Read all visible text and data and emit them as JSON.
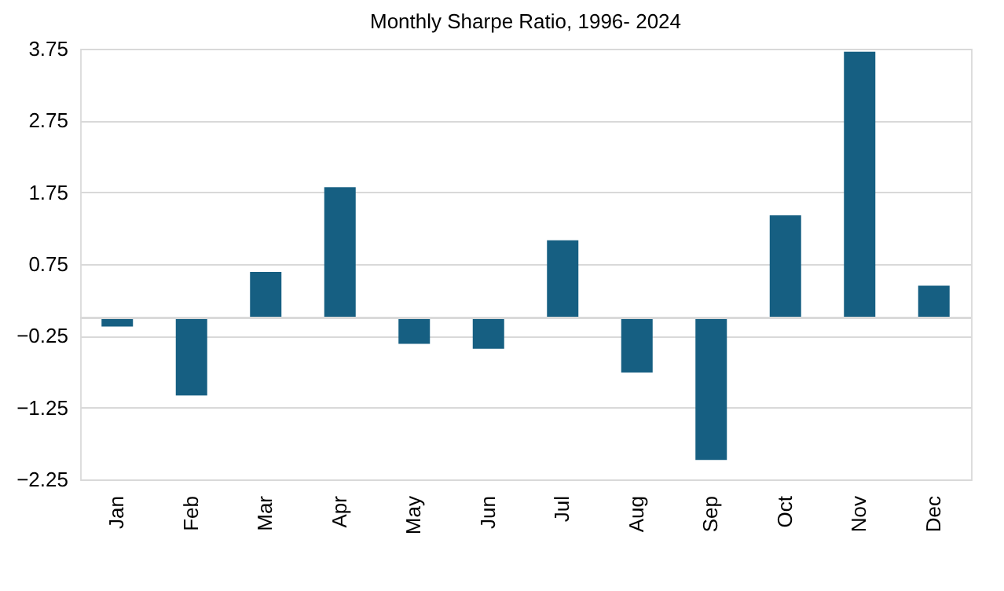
{
  "chart_data": {
    "type": "bar",
    "title": "Monthly Sharpe Ratio, 1996- 2024",
    "categories": [
      "Jan",
      "Feb",
      "Mar",
      "Apr",
      "May",
      "Jun",
      "Jul",
      "Aug",
      "Sep",
      "Oct",
      "Nov",
      "Dec"
    ],
    "values": [
      -0.12,
      -1.08,
      0.64,
      1.82,
      -0.36,
      -0.43,
      1.08,
      -0.76,
      -1.98,
      1.43,
      3.71,
      0.45
    ],
    "color": "#165f82",
    "ylim": [
      -2.25,
      3.75
    ],
    "yticks": [
      -2.25,
      -1.25,
      -0.25,
      0.75,
      1.75,
      2.75,
      3.75
    ],
    "grid": "y"
  }
}
